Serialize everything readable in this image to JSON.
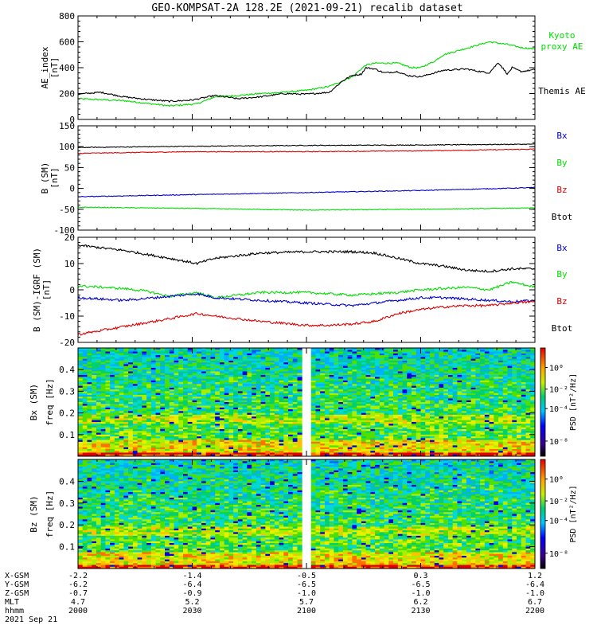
{
  "title": "GEO-KOMPSAT-2A 128.2E (2021-09-21) recalib dataset",
  "colors": {
    "black": "#000000",
    "green": "#00dd00",
    "red": "#dd0000",
    "blue": "#0000cc"
  },
  "chart_data": [
    {
      "type": "line",
      "panel": "ae",
      "ylabel": [
        "AE_index",
        "[nT]"
      ],
      "ylim": [
        0,
        800
      ],
      "yticks": [
        0,
        200,
        400,
        600,
        800
      ],
      "legend": [
        {
          "lines": [
            "Kyoto",
            "proxy AE"
          ],
          "color": "#00dd00"
        },
        {
          "lines": [
            "Themis AE"
          ],
          "color": "#000000"
        }
      ],
      "series": [
        {
          "name": "Kyoto proxy AE",
          "color": "#00dd00",
          "x": [
            0,
            10,
            20,
            26,
            30,
            35,
            40,
            45,
            50,
            55,
            60,
            63,
            65,
            70,
            73,
            75,
            78,
            80,
            85,
            90,
            94,
            97,
            100
          ],
          "y": [
            160,
            145,
            105,
            120,
            175,
            185,
            200,
            210,
            225,
            255,
            330,
            420,
            435,
            435,
            400,
            400,
            450,
            500,
            550,
            600,
            580,
            555,
            545
          ]
        },
        {
          "name": "Themis AE",
          "color": "#000000",
          "x": [
            0,
            5,
            10,
            15,
            20,
            25,
            30,
            35,
            40,
            45,
            50,
            55,
            58,
            60,
            62,
            63,
            65,
            67,
            70,
            72,
            75,
            78,
            80,
            85,
            88,
            90,
            92,
            94,
            95,
            97,
            100
          ],
          "y": [
            195,
            210,
            175,
            155,
            140,
            150,
            185,
            160,
            175,
            200,
            195,
            210,
            300,
            340,
            350,
            400,
            390,
            360,
            370,
            340,
            330,
            360,
            380,
            390,
            370,
            360,
            440,
            350,
            400,
            370,
            385
          ]
        }
      ]
    },
    {
      "type": "line",
      "panel": "b",
      "ylabel": [
        "B (SM)",
        "[nT]"
      ],
      "ylim": [
        -100,
        150
      ],
      "yticks": [
        -100,
        -50,
        0,
        50,
        100,
        150
      ],
      "legend": [
        {
          "lines": [
            "Bx"
          ],
          "color": "#0000cc"
        },
        {
          "lines": [
            "By"
          ],
          "color": "#00dd00"
        },
        {
          "lines": [
            "Bz"
          ],
          "color": "#dd0000"
        },
        {
          "lines": [
            "Btot"
          ],
          "color": "#000000"
        }
      ],
      "series": [
        {
          "name": "black",
          "color": "#000000",
          "x": [
            0,
            25,
            50,
            75,
            100
          ],
          "y": [
            98,
            101,
            103,
            104,
            106
          ]
        },
        {
          "name": "red",
          "color": "#dd0000",
          "x": [
            0,
            25,
            50,
            75,
            100
          ],
          "y": [
            84,
            88,
            88,
            90,
            94
          ]
        },
        {
          "name": "blue",
          "color": "#0000cc",
          "x": [
            0,
            25,
            50,
            75,
            100
          ],
          "y": [
            -20,
            -15,
            -10,
            -5,
            2
          ]
        },
        {
          "name": "green",
          "color": "#00dd00",
          "x": [
            0,
            25,
            50,
            75,
            100
          ],
          "y": [
            -45,
            -48,
            -52,
            -50,
            -47
          ]
        }
      ]
    },
    {
      "type": "line",
      "panel": "db",
      "ylabel": [
        "B (SM)-IGRF (SM)",
        "[nT]"
      ],
      "ylim": [
        -20,
        20
      ],
      "yticks": [
        -20,
        -10,
        0,
        10,
        20
      ],
      "legend": [
        {
          "lines": [
            "Bx"
          ],
          "color": "#0000cc"
        },
        {
          "lines": [
            "By"
          ],
          "color": "#00dd00"
        },
        {
          "lines": [
            "Bz"
          ],
          "color": "#dd0000"
        },
        {
          "lines": [
            "Btot"
          ],
          "color": "#000000"
        }
      ],
      "series": [
        {
          "name": "black",
          "color": "#000000",
          "x": [
            0,
            10,
            20,
            26,
            30,
            40,
            50,
            55,
            60,
            65,
            70,
            75,
            80,
            85,
            90,
            95,
            100
          ],
          "y": [
            17,
            15,
            12,
            10,
            12,
            14,
            14.5,
            14.5,
            14.5,
            14,
            12,
            10,
            9,
            7.5,
            7,
            8,
            8
          ]
        },
        {
          "name": "green",
          "color": "#00dd00",
          "x": [
            0,
            10,
            15,
            20,
            26,
            30,
            40,
            50,
            60,
            70,
            75,
            80,
            85,
            90,
            95,
            100
          ],
          "y": [
            1.5,
            0.5,
            -0.5,
            -2.5,
            -1,
            -3,
            -1,
            -1,
            -2,
            -1,
            0,
            0.5,
            1,
            0,
            3,
            1
          ]
        },
        {
          "name": "blue",
          "color": "#0000cc",
          "x": [
            0,
            10,
            20,
            26,
            30,
            40,
            50,
            55,
            60,
            65,
            70,
            75,
            80,
            85,
            90,
            95,
            100
          ],
          "y": [
            -3,
            -4,
            -2.5,
            -1.5,
            -3,
            -4,
            -5,
            -5.5,
            -6,
            -5,
            -4,
            -3,
            -3,
            -3.5,
            -4,
            -4.5,
            -4
          ]
        },
        {
          "name": "red",
          "color": "#dd0000",
          "x": [
            0,
            10,
            20,
            26,
            30,
            40,
            50,
            55,
            60,
            65,
            70,
            75,
            80,
            85,
            90,
            95,
            100
          ],
          "y": [
            -17,
            -14,
            -11,
            -9,
            -10,
            -12,
            -13.5,
            -13.5,
            -13,
            -12,
            -9,
            -7.5,
            -6.5,
            -6,
            -6,
            -5,
            -4.5
          ]
        }
      ]
    },
    {
      "type": "heatmap",
      "panel": "spec1",
      "ylabel": [
        "Bx (SM)",
        "freq [Hz]"
      ],
      "yticks": [
        "0.1",
        "0.2",
        "0.3",
        "0.4"
      ],
      "ylim": [
        0,
        0.5
      ],
      "gap_x": [
        48.5,
        51.5
      ],
      "colorbar": {
        "label": "PSD [nT²/Hz]",
        "ticks": [
          "10⁰",
          "10⁻²",
          "10⁻⁴",
          "10⁻⁸"
        ]
      }
    },
    {
      "type": "heatmap",
      "panel": "spec2",
      "ylabel": [
        "Bz (SM)",
        "freq [Hz]"
      ],
      "yticks": [
        "0.1",
        "0.2",
        "0.3",
        "0.4"
      ],
      "ylim": [
        0,
        0.5
      ],
      "gap_x": [
        48.5,
        51.5
      ],
      "colorbar": {
        "label": "PSD [nT²/Hz]",
        "ticks": [
          "10⁰",
          "10⁻²",
          "10⁻⁴",
          "10⁻⁸"
        ]
      }
    }
  ],
  "time_axis": {
    "row_labels": [
      "X-GSM",
      "Y-GSM",
      "Z-GSM",
      "MLT",
      "hhmm"
    ],
    "date": "2021 Sep 21",
    "columns": [
      {
        "x": 0,
        "values": [
          "-2.2",
          "-6.2",
          "-0.7",
          "4.7",
          "2000"
        ]
      },
      {
        "x": 25,
        "values": [
          "-1.4",
          "-6.4",
          "-0.9",
          "5.2",
          "2030"
        ]
      },
      {
        "x": 50,
        "values": [
          "-0.5",
          "-6.5",
          "-1.0",
          "5.7",
          "2100"
        ]
      },
      {
        "x": 75,
        "values": [
          "0.3",
          "-6.5",
          "-1.0",
          "6.2",
          "2130"
        ]
      },
      {
        "x": 100,
        "values": [
          "1.2",
          "-6.4",
          "-1.0",
          "6.7",
          "2200"
        ]
      }
    ]
  }
}
